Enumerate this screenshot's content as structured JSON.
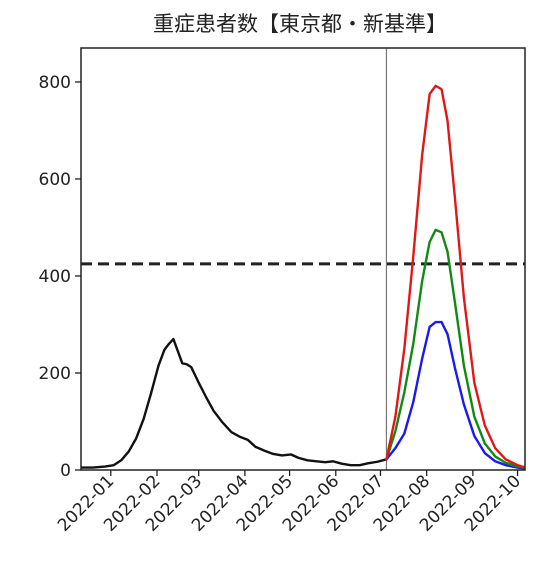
{
  "chart_data": {
    "type": "line",
    "title": "重症患者数【東京都・新基準】",
    "xlabel": "",
    "ylabel": "",
    "ylim": [
      0,
      870
    ],
    "xlim": [
      "2021-12-12",
      "2022-10-06"
    ],
    "y_ticks": [
      0,
      200,
      400,
      600,
      800
    ],
    "y_tick_labels": [
      "0",
      "200",
      "400",
      "600",
      "800"
    ],
    "x_ticks": [
      "2022-01-01",
      "2022-02-01",
      "2022-03-01",
      "2022-04-01",
      "2022-05-01",
      "2022-06-01",
      "2022-07-01",
      "2022-08-01",
      "2022-09-01",
      "2022-10-01"
    ],
    "x_tick_labels": [
      "2022-01",
      "2022-02",
      "2022-03",
      "2022-04",
      "2022-05",
      "2022-06",
      "2022-07",
      "2022-08",
      "2022-09",
      "2022-10"
    ],
    "grid": false,
    "legend": "none",
    "reference_lines": [
      {
        "orientation": "horizontal",
        "value": 425,
        "style": "dashed",
        "color": "#222222"
      },
      {
        "orientation": "vertical",
        "value": "2022-07-05",
        "style": "solid",
        "color": "#777777"
      }
    ],
    "series": [
      {
        "color": "#111111",
        "x": [
          "2021-12-12",
          "2021-12-20",
          "2021-12-28",
          "2022-01-03",
          "2022-01-08",
          "2022-01-13",
          "2022-01-18",
          "2022-01-23",
          "2022-01-28",
          "2022-02-02",
          "2022-02-06",
          "2022-02-09",
          "2022-02-12",
          "2022-02-15",
          "2022-02-18",
          "2022-02-21",
          "2022-02-24",
          "2022-03-01",
          "2022-03-06",
          "2022-03-11",
          "2022-03-17",
          "2022-03-23",
          "2022-03-29",
          "2022-04-03",
          "2022-04-08",
          "2022-04-14",
          "2022-04-20",
          "2022-04-26",
          "2022-05-02",
          "2022-05-07",
          "2022-05-13",
          "2022-05-19",
          "2022-05-25",
          "2022-05-30",
          "2022-06-05",
          "2022-06-11",
          "2022-06-17",
          "2022-06-23",
          "2022-06-29",
          "2022-07-05"
        ],
        "y": [
          5,
          5,
          7,
          10,
          20,
          38,
          65,
          105,
          158,
          215,
          248,
          260,
          270,
          245,
          220,
          218,
          212,
          180,
          150,
          122,
          98,
          78,
          68,
          62,
          48,
          40,
          33,
          30,
          32,
          25,
          20,
          18,
          16,
          18,
          13,
          10,
          10,
          14,
          17,
          22
        ]
      },
      {
        "color": "#1a1aee",
        "x": [
          "2022-07-05",
          "2022-07-11",
          "2022-07-17",
          "2022-07-23",
          "2022-07-29",
          "2022-08-03",
          "2022-08-07",
          "2022-08-11",
          "2022-08-15",
          "2022-08-20",
          "2022-08-26",
          "2022-09-02",
          "2022-09-09",
          "2022-09-16",
          "2022-09-23",
          "2022-10-01",
          "2022-10-06"
        ],
        "y": [
          22,
          45,
          75,
          140,
          230,
          295,
          305,
          305,
          280,
          210,
          135,
          70,
          35,
          18,
          10,
          5,
          3
        ]
      },
      {
        "color": "#128a12",
        "x": [
          "2022-07-05",
          "2022-07-11",
          "2022-07-17",
          "2022-07-23",
          "2022-07-29",
          "2022-08-03",
          "2022-08-07",
          "2022-08-11",
          "2022-08-15",
          "2022-08-20",
          "2022-08-26",
          "2022-09-02",
          "2022-09-09",
          "2022-09-16",
          "2022-09-23",
          "2022-10-01",
          "2022-10-06"
        ],
        "y": [
          22,
          80,
          160,
          260,
          390,
          470,
          495,
          490,
          450,
          345,
          215,
          110,
          55,
          28,
          15,
          7,
          4
        ]
      },
      {
        "color": "#e01818",
        "x": [
          "2022-07-05",
          "2022-07-11",
          "2022-07-17",
          "2022-07-23",
          "2022-07-29",
          "2022-08-03",
          "2022-08-07",
          "2022-08-11",
          "2022-08-15",
          "2022-08-20",
          "2022-08-26",
          "2022-09-02",
          "2022-09-09",
          "2022-09-16",
          "2022-09-23",
          "2022-10-01",
          "2022-10-06"
        ],
        "y": [
          22,
          110,
          250,
          440,
          650,
          775,
          792,
          785,
          720,
          560,
          355,
          180,
          92,
          45,
          22,
          10,
          5
        ]
      }
    ]
  }
}
